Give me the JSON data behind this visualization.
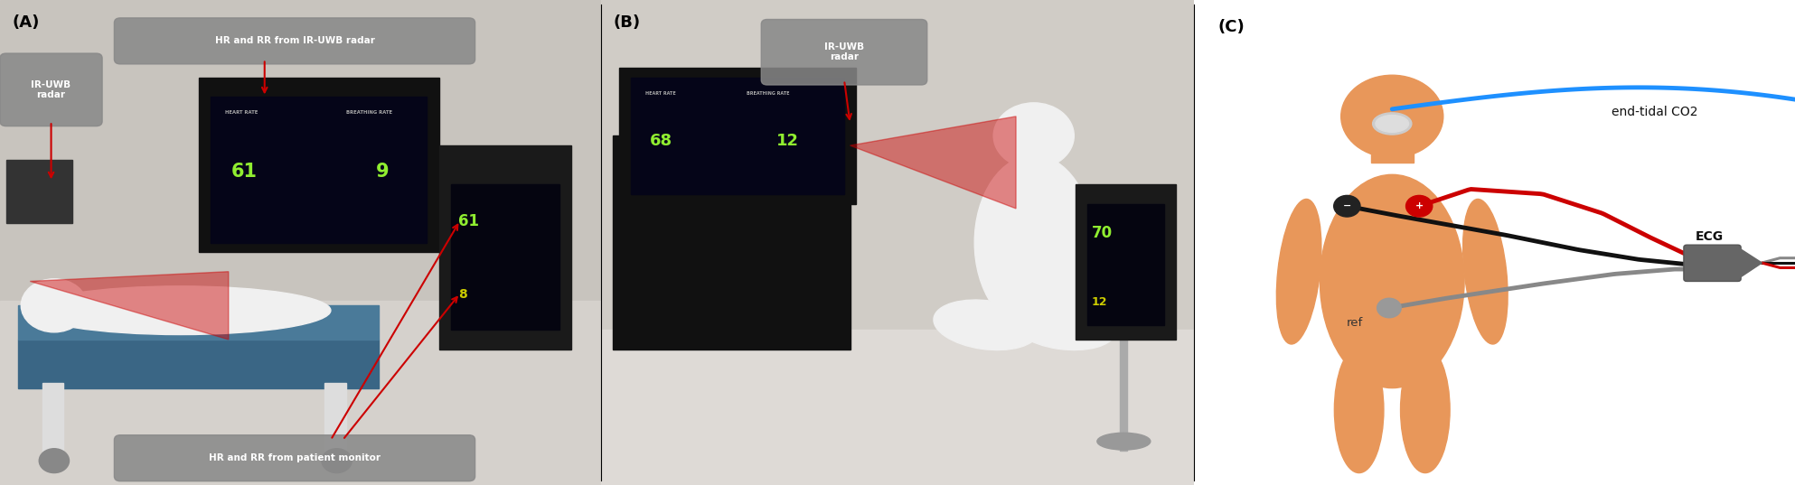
{
  "fig_width": 19.86,
  "fig_height": 5.37,
  "dpi": 100,
  "bg_color": "#ffffff",
  "panel_label_fontsize": 13,
  "panel_label_color": "#000000",
  "annotations_A": {
    "ir_uwb_radar_label": "IR-UWB\nradar",
    "hr_rr_radar_label": "HR and RR from IR-UWB radar",
    "hr_rr_monitor_label": "HR and RR from patient monitor",
    "arrow_color": "#cc0000"
  },
  "annotations_B": {
    "ir_uwb_radar_label": "IR-UWB\nradar",
    "arrow_color": "#cc0000"
  },
  "panel_C": {
    "body_color": "#E8975A",
    "blue_line_color": "#1E90FF",
    "red_line_color": "#CC0000",
    "black_line_color": "#111111",
    "gray_line_color": "#888888",
    "end_tidal_label": "end-tidal CO2",
    "ecg_label": "ECG",
    "ref_label": "ref",
    "line_width": 3.5,
    "label_fontsize": 10
  },
  "scene_A_bg": "#d0ccc8",
  "scene_B_bg": "#e0ddd8"
}
